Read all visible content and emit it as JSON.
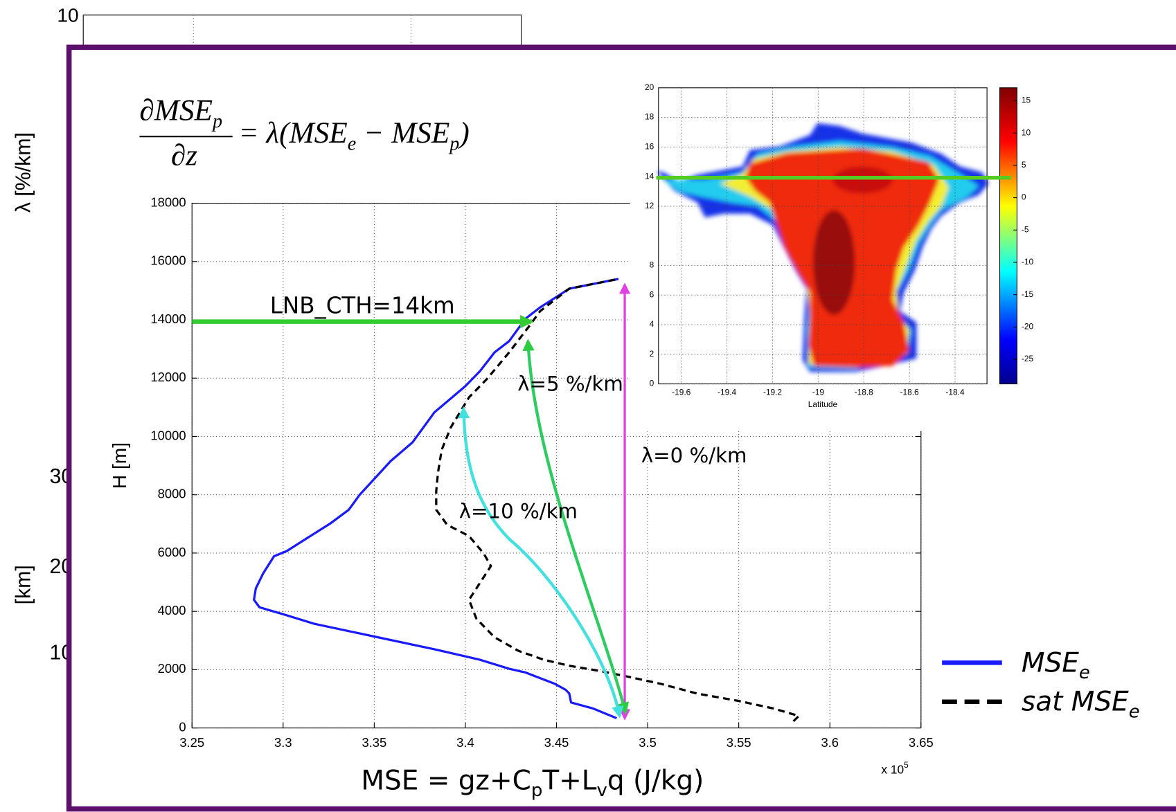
{
  "background": {
    "ytick_top": "10",
    "ylabel_top": "λ [%/km]",
    "ylabel_bottom": "[km]",
    "ytick_labels": [
      "30",
      "20",
      "10"
    ]
  },
  "equation": {
    "numerator": "∂MSE",
    "numerator_sub": "p",
    "denominator": "∂z",
    "rhs": "= λ(MSE",
    "rhs_sub1": "e",
    "rhs_mid": " − MSE",
    "rhs_sub2": "p",
    "rhs_end": ")"
  },
  "chart_data": [
    {
      "type": "line",
      "ylabel": "H [m]",
      "xlabel": [
        "MSE = gz+C",
        "p",
        "T+L",
        "v",
        "q (J/kg)"
      ],
      "x_multiplier": [
        "x 10",
        "5"
      ],
      "xlim": [
        3.25,
        3.65
      ],
      "xticks": [
        3.25,
        3.3,
        3.35,
        3.4,
        3.45,
        3.5,
        3.55,
        3.6,
        3.65
      ],
      "ylim": [
        0,
        18000
      ],
      "yticks": [
        0,
        2000,
        4000,
        6000,
        8000,
        10000,
        12000,
        14000,
        16000,
        18000
      ],
      "grid": true,
      "series": [
        {
          "name": "MSE",
          "name_sub": "e",
          "color": "#1a1aff",
          "line_style": "solid",
          "x": [
            3.483,
            3.47,
            3.458,
            3.457,
            3.455,
            3.449,
            3.433,
            3.424,
            3.408,
            3.383,
            3.35,
            3.317,
            3.301,
            3.287,
            3.284,
            3.285,
            3.289,
            3.295,
            3.302,
            3.313,
            3.326,
            3.336,
            3.342,
            3.359,
            3.371,
            3.383,
            3.4,
            3.408,
            3.416,
            3.424,
            3.433,
            3.441,
            3.457,
            3.484
          ],
          "values": [
            334,
            669,
            874,
            1183,
            1311,
            1517,
            1903,
            2031,
            2340,
            2700,
            3137,
            3574,
            3883,
            4140,
            4397,
            4783,
            5297,
            5889,
            6069,
            6506,
            7020,
            7483,
            7997,
            9154,
            9797,
            10826,
            11726,
            12240,
            12883,
            13269,
            14040,
            14426,
            15069,
            15403
          ]
        },
        {
          "name": "sat MSE",
          "name_sub": "e",
          "color": "#000000",
          "line_style": "dashed",
          "x": [
            3.58,
            3.583,
            3.569,
            3.55,
            3.527,
            3.507,
            3.49,
            3.474,
            3.457,
            3.443,
            3.429,
            3.416,
            3.406,
            3.402,
            3.414,
            3.41,
            3.402,
            3.39,
            3.384,
            3.384,
            3.385,
            3.387,
            3.392,
            3.402,
            3.412,
            3.424,
            3.435,
            3.441,
            3.457,
            3.484
          ],
          "values": [
            231,
            411,
            669,
            926,
            1183,
            1517,
            1749,
            1954,
            2134,
            2340,
            2649,
            3111,
            3754,
            4397,
            5554,
            5991,
            6583,
            6969,
            7483,
            8126,
            8769,
            9540,
            10311,
            11340,
            11983,
            12883,
            13783,
            14297,
            15069,
            15403
          ]
        }
      ],
      "annotations": [
        "LNB_CTH=14km",
        "λ=5 %/km",
        "λ=0 %/km",
        "λ=10 %/km"
      ]
    },
    {
      "type": "heatmap",
      "xlabel": "Latitude",
      "xlim": [
        -19.7,
        -18.26
      ],
      "xticks": [
        -19.6,
        -19.4,
        -19.2,
        -19,
        -18.8,
        -18.6,
        -18.4
      ],
      "ylim": [
        0,
        20
      ],
      "yticks": [
        0,
        2,
        4,
        6,
        8,
        12,
        14,
        16,
        18,
        20
      ],
      "clim": [
        -28.8,
        17
      ],
      "cticks": [
        -25,
        -20,
        -15,
        -10,
        -5,
        0,
        5,
        10,
        15
      ]
    }
  ]
}
